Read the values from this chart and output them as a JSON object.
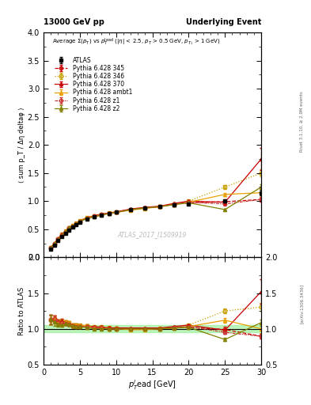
{
  "title_left": "13000 GeV pp",
  "title_right": "Underlying Event",
  "right_label_top": "Rivet 3.1.10, ≥ 2.9M events",
  "right_label_bot": "[arXiv:1306.3436]",
  "watermark": "ATLAS_2017_I1509919",
  "ylabel_main": "⟨ sum p_T / Δη deltaφ ⟩",
  "ylabel_ratio": "Ratio to ATLAS",
  "xlabel": "p$_T^l$ead [GeV]",
  "ylim_main": [
    0,
    4
  ],
  "ylim_ratio": [
    0.5,
    2
  ],
  "xlim": [
    0,
    30
  ],
  "atlas_x": [
    1,
    1.5,
    2,
    2.5,
    3,
    3.5,
    4,
    4.5,
    5,
    6,
    7,
    8,
    9,
    10,
    12,
    14,
    16,
    18,
    20,
    25,
    30
  ],
  "atlas_y": [
    0.15,
    0.22,
    0.3,
    0.37,
    0.43,
    0.49,
    0.54,
    0.58,
    0.62,
    0.68,
    0.72,
    0.75,
    0.78,
    0.8,
    0.85,
    0.88,
    0.9,
    0.93,
    0.95,
    1.0,
    1.15
  ],
  "atlas_yerr": [
    0.01,
    0.01,
    0.01,
    0.01,
    0.01,
    0.01,
    0.01,
    0.01,
    0.01,
    0.01,
    0.01,
    0.01,
    0.01,
    0.01,
    0.01,
    0.01,
    0.01,
    0.01,
    0.01,
    0.02,
    0.05
  ],
  "py345_x": [
    1,
    1.5,
    2,
    2.5,
    3,
    3.5,
    4,
    4.5,
    5,
    6,
    7,
    8,
    9,
    10,
    12,
    14,
    16,
    18,
    20,
    25,
    30
  ],
  "py345_y": [
    0.17,
    0.25,
    0.33,
    0.4,
    0.46,
    0.52,
    0.56,
    0.6,
    0.64,
    0.7,
    0.73,
    0.76,
    0.78,
    0.8,
    0.85,
    0.88,
    0.9,
    0.94,
    0.97,
    0.99,
    1.03
  ],
  "py345_yerr": [
    0.01,
    0.01,
    0.01,
    0.01,
    0.01,
    0.01,
    0.01,
    0.01,
    0.01,
    0.01,
    0.01,
    0.01,
    0.01,
    0.01,
    0.01,
    0.01,
    0.01,
    0.01,
    0.01,
    0.02,
    0.04
  ],
  "py346_x": [
    1,
    1.5,
    2,
    2.5,
    3,
    3.5,
    4,
    4.5,
    5,
    6,
    7,
    8,
    9,
    10,
    12,
    14,
    16,
    18,
    20,
    25,
    30
  ],
  "py346_y": [
    0.17,
    0.25,
    0.33,
    0.41,
    0.47,
    0.53,
    0.57,
    0.61,
    0.65,
    0.71,
    0.74,
    0.77,
    0.79,
    0.81,
    0.85,
    0.88,
    0.91,
    0.95,
    1.0,
    1.25,
    1.5
  ],
  "py346_yerr": [
    0.01,
    0.01,
    0.01,
    0.01,
    0.01,
    0.01,
    0.01,
    0.01,
    0.01,
    0.01,
    0.01,
    0.01,
    0.01,
    0.01,
    0.01,
    0.01,
    0.01,
    0.01,
    0.01,
    0.03,
    0.06
  ],
  "py370_x": [
    1,
    1.5,
    2,
    2.5,
    3,
    3.5,
    4,
    4.5,
    5,
    6,
    7,
    8,
    9,
    10,
    12,
    14,
    16,
    18,
    20,
    25,
    30
  ],
  "py370_y": [
    0.17,
    0.25,
    0.33,
    0.41,
    0.47,
    0.53,
    0.57,
    0.61,
    0.65,
    0.71,
    0.74,
    0.77,
    0.79,
    0.81,
    0.86,
    0.89,
    0.91,
    0.96,
    1.0,
    0.98,
    1.75
  ],
  "py370_yerr": [
    0.01,
    0.01,
    0.01,
    0.01,
    0.01,
    0.01,
    0.01,
    0.01,
    0.01,
    0.01,
    0.01,
    0.01,
    0.01,
    0.01,
    0.01,
    0.01,
    0.01,
    0.01,
    0.01,
    0.05,
    0.2
  ],
  "pyambt1_x": [
    1,
    1.5,
    2,
    2.5,
    3,
    3.5,
    4,
    4.5,
    5,
    6,
    7,
    8,
    9,
    10,
    12,
    14,
    16,
    18,
    20,
    25,
    30
  ],
  "pyambt1_y": [
    0.17,
    0.25,
    0.33,
    0.4,
    0.47,
    0.53,
    0.57,
    0.61,
    0.65,
    0.71,
    0.73,
    0.76,
    0.78,
    0.8,
    0.84,
    0.87,
    0.9,
    0.94,
    0.98,
    1.12,
    1.15
  ],
  "pyambt1_yerr": [
    0.01,
    0.01,
    0.01,
    0.01,
    0.01,
    0.01,
    0.01,
    0.01,
    0.01,
    0.01,
    0.01,
    0.01,
    0.01,
    0.01,
    0.01,
    0.01,
    0.01,
    0.01,
    0.01,
    0.03,
    0.07
  ],
  "pyz1_x": [
    1,
    1.5,
    2,
    2.5,
    3,
    3.5,
    4,
    4.5,
    5,
    6,
    7,
    8,
    9,
    10,
    12,
    14,
    16,
    18,
    20,
    25,
    30
  ],
  "pyz1_y": [
    0.17,
    0.25,
    0.33,
    0.4,
    0.46,
    0.52,
    0.56,
    0.6,
    0.64,
    0.7,
    0.73,
    0.76,
    0.78,
    0.8,
    0.85,
    0.88,
    0.9,
    0.95,
    0.98,
    0.95,
    1.03
  ],
  "pyz1_yerr": [
    0.01,
    0.01,
    0.01,
    0.01,
    0.01,
    0.01,
    0.01,
    0.01,
    0.01,
    0.01,
    0.01,
    0.01,
    0.01,
    0.01,
    0.01,
    0.01,
    0.01,
    0.01,
    0.01,
    0.02,
    0.04
  ],
  "pyz2_x": [
    1,
    1.5,
    2,
    2.5,
    3,
    3.5,
    4,
    4.5,
    5,
    6,
    7,
    8,
    9,
    10,
    12,
    14,
    16,
    18,
    20,
    25,
    30
  ],
  "pyz2_y": [
    0.17,
    0.24,
    0.32,
    0.39,
    0.46,
    0.52,
    0.56,
    0.6,
    0.64,
    0.69,
    0.72,
    0.75,
    0.78,
    0.8,
    0.85,
    0.88,
    0.9,
    0.94,
    0.97,
    0.85,
    1.25
  ],
  "pyz2_yerr": [
    0.01,
    0.01,
    0.01,
    0.01,
    0.01,
    0.01,
    0.01,
    0.01,
    0.01,
    0.01,
    0.01,
    0.01,
    0.01,
    0.01,
    0.01,
    0.01,
    0.01,
    0.01,
    0.01,
    0.02,
    0.05
  ],
  "color_atlas": "#000000",
  "color_345": "#c80000",
  "color_346": "#c8a000",
  "color_370": "#c80000",
  "color_ambt1": "#e8a000",
  "color_z1": "#cc3333",
  "color_z2": "#808000",
  "band_color": "#90ee90",
  "band_alpha": 0.6
}
